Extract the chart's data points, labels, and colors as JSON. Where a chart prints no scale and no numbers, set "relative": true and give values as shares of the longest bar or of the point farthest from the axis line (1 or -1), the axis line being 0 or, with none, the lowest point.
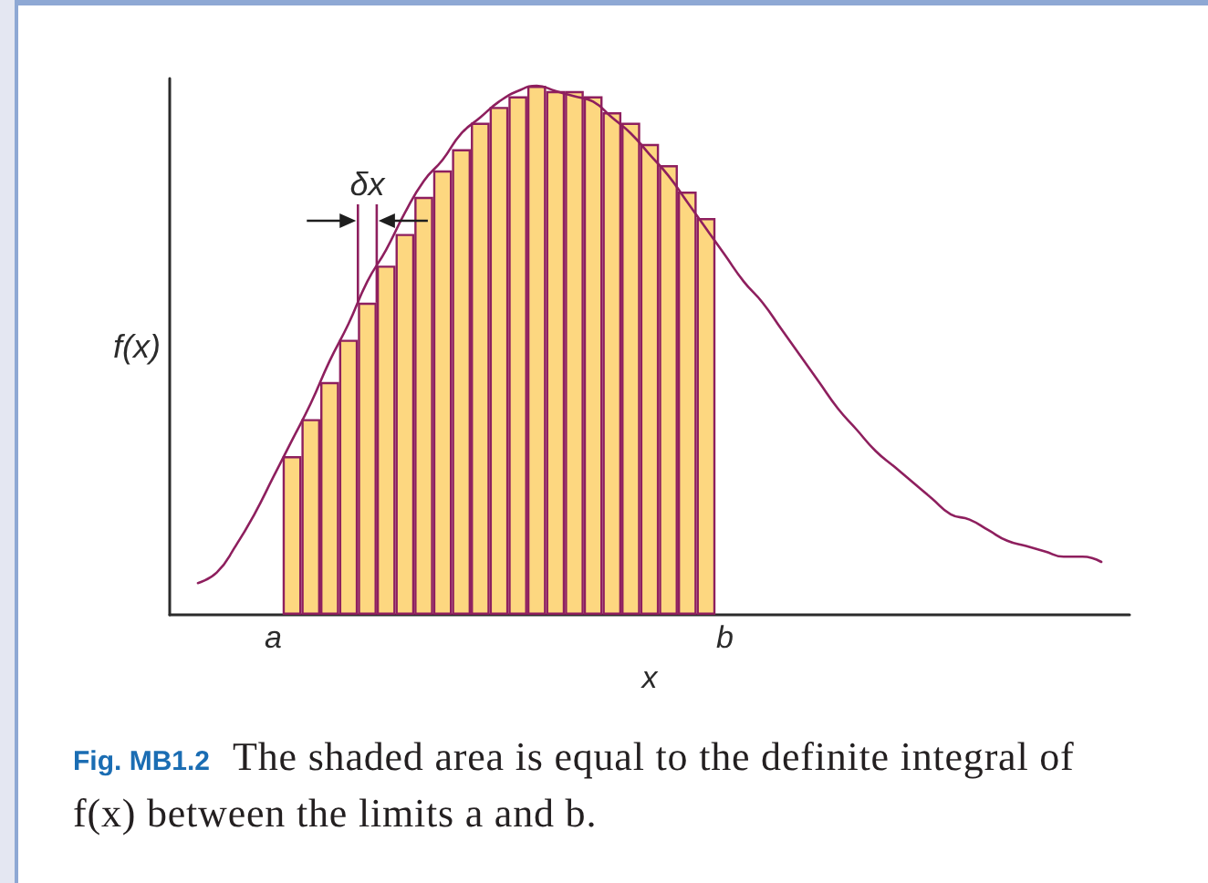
{
  "chart_data": {
    "type": "bar",
    "relative": true,
    "xlabel": "x",
    "ylabel": "f(x)",
    "categories": [
      null,
      null,
      null,
      null,
      null,
      "a",
      null,
      null,
      null,
      null,
      null,
      null,
      null,
      null,
      null,
      null,
      null,
      null,
      null,
      null,
      null,
      null,
      null,
      null,
      null,
      null,
      null,
      null,
      null,
      "b",
      null,
      null,
      null,
      null,
      null,
      null,
      null,
      null,
      null,
      null,
      null,
      null,
      null,
      null,
      null,
      null,
      null,
      null,
      null,
      null,
      null
    ],
    "series": [
      {
        "color": "#fdd780",
        "values": [
          null,
          null,
          null,
          null,
          null,
          null,
          0.3,
          0.37,
          0.44,
          0.52,
          0.59,
          0.66,
          0.72,
          0.79,
          0.84,
          0.88,
          0.93,
          0.96,
          0.98,
          1.0,
          0.99,
          0.99,
          0.98,
          0.95,
          0.93,
          0.89,
          0.85,
          0.8,
          0.75,
          null,
          null,
          null,
          null,
          null,
          null,
          null,
          null,
          null,
          null,
          null,
          null,
          null,
          null,
          null,
          null,
          null,
          null,
          null,
          null,
          null,
          null
        ]
      },
      {
        "type": "line",
        "color": "#8e1f5e",
        "values": [
          null,
          0.06,
          0.08,
          0.13,
          0.19,
          0.26,
          0.33,
          0.4,
          0.48,
          0.55,
          0.63,
          0.69,
          0.76,
          0.82,
          0.86,
          0.91,
          0.94,
          0.97,
          0.99,
          1.0,
          0.99,
          0.98,
          0.97,
          0.94,
          0.91,
          0.87,
          0.83,
          0.78,
          0.73,
          0.68,
          0.63,
          0.59,
          0.54,
          0.49,
          0.44,
          0.39,
          0.35,
          0.31,
          0.28,
          0.25,
          0.22,
          0.19,
          0.18,
          0.16,
          0.14,
          0.13,
          0.12,
          0.11,
          0.11,
          0.1,
          null
        ]
      }
    ],
    "annotations": [
      "δx",
      "Fig. MB1.2 The shaded area is equal to the definite integral of f(x) between the limits a and b."
    ]
  }
}
